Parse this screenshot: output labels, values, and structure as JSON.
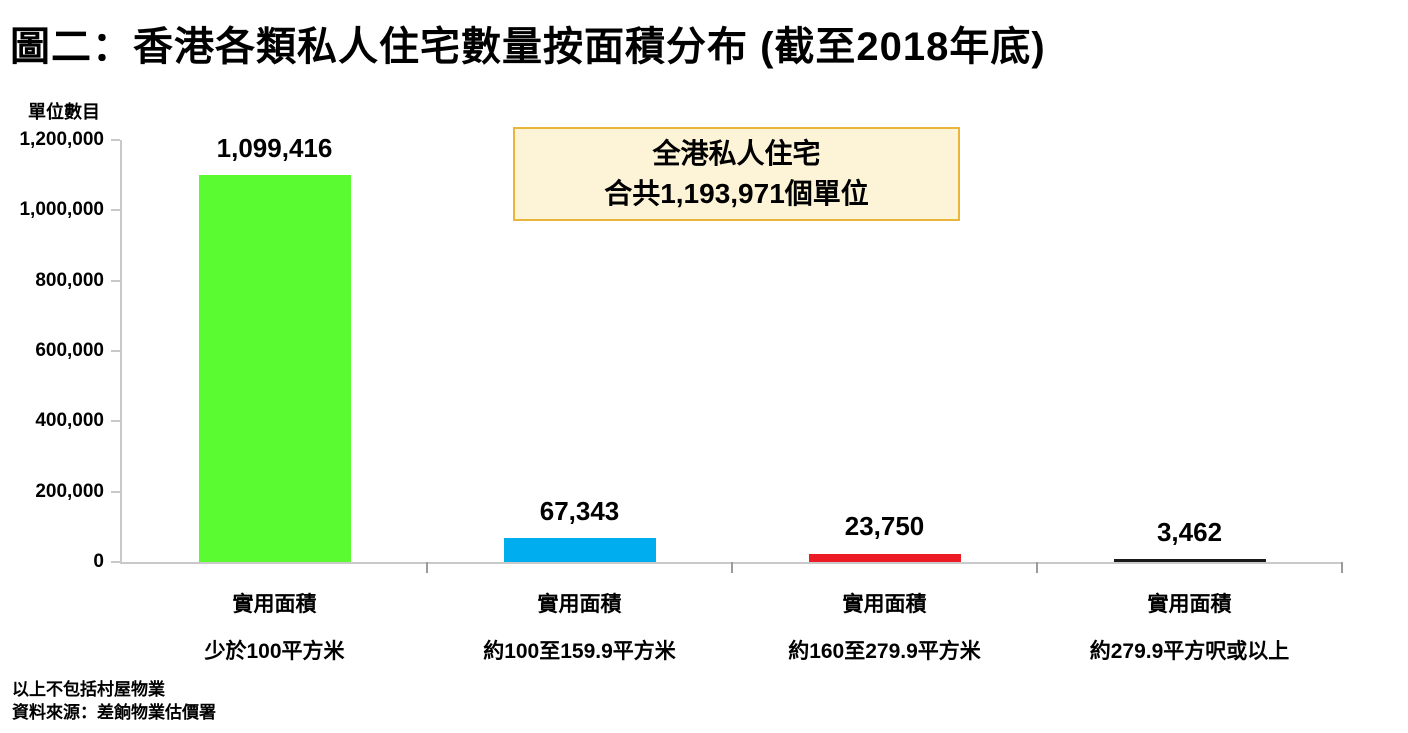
{
  "title": "圖二：香港各類私人住宅數量按面積分布 (截至2018年底)",
  "footnotes": {
    "line1": "以上不包括村屋物業",
    "line2": "資料來源：差餉物業估價署"
  },
  "chart_data": {
    "type": "bar",
    "title": "圖二：香港各類私人住宅數量按面積分布 (截至2018年底)",
    "ylabel": "單位數目",
    "xlabel": "",
    "ylim": [
      0,
      1200000
    ],
    "grid": false,
    "legend": "none",
    "categories": [
      "實用面積 少於100平方米",
      "實用面積 約100至159.9平方米",
      "實用面積 約160至279.9平方米",
      "實用面積 約279.9平方呎或以上"
    ],
    "category_lines": [
      [
        "實用面積",
        "少於100平方米"
      ],
      [
        "實用面積",
        "約100至159.9平方米"
      ],
      [
        "實用面積",
        "約160至279.9平方米"
      ],
      [
        "實用面積",
        "約279.9平方呎或以上"
      ]
    ],
    "values": [
      1099416,
      67343,
      23750,
      3462
    ],
    "value_labels": [
      "1,099,416",
      "67,343",
      "23,750",
      "3,462"
    ],
    "bar_colors": [
      "#5bfb31",
      "#00aeef",
      "#ed1c24",
      "#1a1a1a"
    ],
    "yticks": [
      {
        "value": 0,
        "label": "0"
      },
      {
        "value": 200000,
        "label": "200,000"
      },
      {
        "value": 400000,
        "label": "400,000"
      },
      {
        "value": 600000,
        "label": "600,000"
      },
      {
        "value": 800000,
        "label": "800,000"
      },
      {
        "value": 1000000,
        "label": "1,000,000"
      },
      {
        "value": 1200000,
        "label": "1,200,000"
      }
    ],
    "annotation": {
      "line1": "全港私人住宅",
      "line2": "合共1,193,971個單位"
    },
    "axis_color": "#c9c9c9"
  }
}
